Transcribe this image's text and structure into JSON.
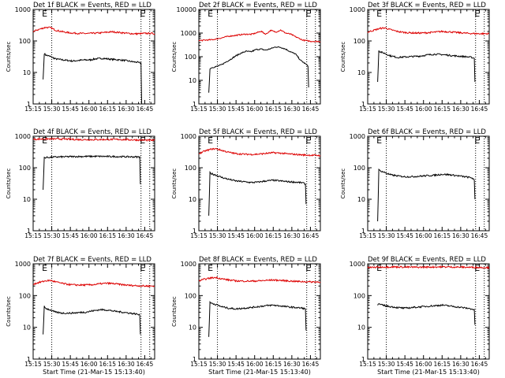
{
  "colors": {
    "events": "#000000",
    "lld": "#dd0000",
    "axis": "#000000"
  },
  "chart_data": [
    {
      "type": "line",
      "title": "Det 1f BLACK = Events, RED = LLD",
      "xlabel": "",
      "ylabel": "Counts/sec",
      "y_scale": "log",
      "ylim": [
        1,
        1000
      ],
      "y_ticks": [
        "1",
        "10",
        "100",
        "1000"
      ],
      "x_ticks": [
        "15:15",
        "15:30",
        "15:45",
        "16:00",
        "16:15",
        "16:30",
        "16:45"
      ],
      "x_minutes": [
        0,
        15,
        30,
        45,
        60,
        75,
        90
      ],
      "xlim_minutes": [
        0,
        98
      ],
      "markers": [
        {
          "label": "E",
          "minute": 9
        },
        {
          "label": "E",
          "minute": 88
        }
      ],
      "dotted_lines_minutes": [
        15,
        87,
        94
      ],
      "series": [
        {
          "color": "black",
          "x": [
            8,
            9,
            10,
            14,
            18,
            24,
            28,
            32,
            36,
            42,
            46,
            50,
            56,
            60,
            64,
            70,
            74,
            80,
            84,
            86,
            87,
            87.5
          ],
          "y": [
            6,
            40,
            36,
            32,
            27,
            25,
            24,
            23,
            24,
            25,
            25,
            27,
            28,
            27,
            26,
            25,
            24,
            22,
            21,
            20,
            20,
            1
          ]
        },
        {
          "color": "red",
          "x": [
            0,
            5,
            10,
            14,
            18,
            24,
            30,
            36,
            42,
            48,
            54,
            60,
            64,
            70,
            76,
            82,
            86,
            92,
            98
          ],
          "y": [
            200,
            235,
            270,
            265,
            220,
            195,
            180,
            175,
            172,
            175,
            180,
            190,
            195,
            185,
            175,
            168,
            170,
            175,
            170
          ]
        }
      ]
    },
    {
      "type": "line",
      "title": "Det 2f BLACK = Events, RED = LLD",
      "xlabel": "",
      "ylabel": "Counts/sec",
      "y_scale": "log",
      "ylim": [
        1,
        10000
      ],
      "y_ticks": [
        "1",
        "10",
        "100",
        "1000",
        "10000"
      ],
      "x_ticks": [
        "15:15",
        "15:30",
        "15:45",
        "16:00",
        "16:15",
        "16:30",
        "16:45"
      ],
      "x_minutes": [
        0,
        15,
        30,
        45,
        60,
        75,
        90
      ],
      "xlim_minutes": [
        0,
        98
      ],
      "markers": [
        {
          "label": "E",
          "minute": 9
        },
        {
          "label": "E",
          "minute": 88
        }
      ],
      "dotted_lines_minutes": [
        15,
        87,
        94
      ],
      "series": [
        {
          "color": "black",
          "x": [
            8,
            9,
            10,
            14,
            18,
            22,
            26,
            30,
            34,
            38,
            42,
            46,
            50,
            54,
            58,
            62,
            66,
            70,
            74,
            78,
            82,
            86,
            88,
            88.5
          ],
          "y": [
            3,
            30,
            34,
            38,
            45,
            60,
            80,
            110,
            140,
            170,
            160,
            200,
            210,
            190,
            220,
            260,
            250,
            210,
            160,
            130,
            70,
            50,
            40,
            5
          ]
        },
        {
          "color": "red",
          "x": [
            0,
            5,
            10,
            14,
            18,
            22,
            26,
            30,
            34,
            38,
            42,
            46,
            50,
            54,
            58,
            62,
            66,
            70,
            74,
            78,
            84,
            90,
            98
          ],
          "y": [
            480,
            500,
            520,
            560,
            620,
            700,
            760,
            800,
            860,
            900,
            880,
            1000,
            1200,
            900,
            1300,
            1100,
            1350,
            1000,
            900,
            700,
            500,
            450,
            440
          ]
        }
      ]
    },
    {
      "type": "line",
      "title": "Det 3f BLACK = Events, RED = LLD",
      "xlabel": "",
      "ylabel": "Counts/sec",
      "y_scale": "log",
      "ylim": [
        1,
        1000
      ],
      "y_ticks": [
        "1",
        "10",
        "100",
        "1000"
      ],
      "x_ticks": [
        "15:15",
        "15:30",
        "15:45",
        "16:00",
        "16:15",
        "16:30",
        "16:45"
      ],
      "x_minutes": [
        0,
        15,
        30,
        45,
        60,
        75,
        90
      ],
      "xlim_minutes": [
        0,
        98
      ],
      "markers": [
        {
          "label": "E",
          "minute": 9
        },
        {
          "label": "E",
          "minute": 88
        }
      ],
      "dotted_lines_minutes": [
        15,
        87,
        94
      ],
      "series": [
        {
          "color": "black",
          "x": [
            8,
            9,
            10,
            14,
            18,
            24,
            30,
            36,
            42,
            48,
            54,
            60,
            66,
            72,
            78,
            84,
            86,
            86.5
          ],
          "y": [
            5,
            50,
            45,
            40,
            34,
            30,
            31,
            32,
            33,
            36,
            38,
            37,
            35,
            33,
            32,
            30,
            28,
            5
          ]
        },
        {
          "color": "red",
          "x": [
            0,
            5,
            10,
            14,
            18,
            24,
            30,
            36,
            42,
            48,
            54,
            60,
            66,
            72,
            78,
            84,
            90,
            98
          ],
          "y": [
            190,
            220,
            250,
            260,
            230,
            200,
            185,
            180,
            178,
            182,
            190,
            200,
            195,
            185,
            178,
            172,
            170,
            170
          ]
        }
      ]
    },
    {
      "type": "line",
      "title": "Det 4f BLACK = Events, RED = LLD",
      "xlabel": "",
      "ylabel": "Counts/sec",
      "y_scale": "log",
      "ylim": [
        1,
        1000
      ],
      "y_ticks": [
        "1",
        "10",
        "100",
        "1000"
      ],
      "x_ticks": [
        "15:15",
        "15:30",
        "15:45",
        "16:00",
        "16:15",
        "16:30",
        "16:45"
      ],
      "x_minutes": [
        0,
        15,
        30,
        45,
        60,
        75,
        90
      ],
      "xlim_minutes": [
        0,
        98
      ],
      "markers": [
        {
          "label": "E",
          "minute": 9
        },
        {
          "label": "E",
          "minute": 88
        }
      ],
      "dotted_lines_minutes": [
        15,
        87,
        94
      ],
      "series": [
        {
          "color": "black",
          "x": [
            8,
            9,
            14,
            20,
            30,
            40,
            50,
            60,
            70,
            80,
            86,
            86.5
          ],
          "y": [
            20,
            210,
            215,
            220,
            225,
            228,
            230,
            228,
            225,
            222,
            220,
            30
          ]
        },
        {
          "color": "red",
          "x": [
            0,
            10,
            20,
            30,
            40,
            50,
            60,
            70,
            80,
            90,
            98
          ],
          "y": [
            800,
            820,
            820,
            800,
            780,
            780,
            790,
            790,
            770,
            750,
            740
          ]
        }
      ]
    },
    {
      "type": "line",
      "title": "Det 5f BLACK = Events, RED = LLD",
      "xlabel": "",
      "ylabel": "Counts/sec",
      "y_scale": "log",
      "ylim": [
        1,
        1000
      ],
      "y_ticks": [
        "1",
        "10",
        "100",
        "1000"
      ],
      "x_ticks": [
        "15:15",
        "15:30",
        "15:45",
        "16:00",
        "16:15",
        "16:30",
        "16:45"
      ],
      "x_minutes": [
        0,
        15,
        30,
        45,
        60,
        75,
        90
      ],
      "xlim_minutes": [
        0,
        98
      ],
      "markers": [
        {
          "label": "E",
          "minute": 9
        },
        {
          "label": "E",
          "minute": 88
        }
      ],
      "dotted_lines_minutes": [
        15,
        87,
        94
      ],
      "series": [
        {
          "color": "black",
          "x": [
            8,
            9,
            10,
            14,
            18,
            24,
            30,
            36,
            42,
            48,
            54,
            60,
            66,
            72,
            78,
            84,
            86,
            86.5
          ],
          "y": [
            3,
            70,
            65,
            58,
            50,
            43,
            38,
            36,
            34,
            35,
            38,
            40,
            38,
            36,
            35,
            33,
            30,
            7
          ]
        },
        {
          "color": "red",
          "x": [
            0,
            5,
            10,
            14,
            18,
            24,
            30,
            36,
            42,
            48,
            54,
            60,
            66,
            72,
            78,
            84,
            90,
            98
          ],
          "y": [
            280,
            340,
            390,
            400,
            360,
            310,
            280,
            270,
            265,
            270,
            285,
            300,
            290,
            275,
            265,
            255,
            250,
            245
          ]
        }
      ]
    },
    {
      "type": "line",
      "title": "Det 6f BLACK = Events, RED = LLD",
      "xlabel": "",
      "ylabel": "Counts/sec",
      "y_scale": "log",
      "ylim": [
        1,
        1000
      ],
      "y_ticks": [
        "1",
        "10",
        "100",
        "1000"
      ],
      "x_ticks": [
        "15:15",
        "15:30",
        "15:45",
        "16:00",
        "16:15",
        "16:30",
        "16:45"
      ],
      "x_minutes": [
        0,
        15,
        30,
        45,
        60,
        75,
        90
      ],
      "xlim_minutes": [
        0,
        98
      ],
      "markers": [
        {
          "label": "E",
          "minute": 9
        },
        {
          "label": "E",
          "minute": 88
        }
      ],
      "dotted_lines_minutes": [
        15,
        87,
        94
      ],
      "series": [
        {
          "color": "black",
          "x": [
            8,
            9,
            10,
            14,
            18,
            24,
            30,
            36,
            42,
            48,
            54,
            60,
            66,
            72,
            78,
            84,
            86,
            86.5
          ],
          "y": [
            2,
            85,
            80,
            70,
            60,
            55,
            52,
            52,
            54,
            56,
            58,
            62,
            60,
            56,
            52,
            48,
            40,
            10
          ]
        }
      ]
    },
    {
      "type": "line",
      "title": "Det 7f BLACK = Events, RED = LLD",
      "xlabel": "Start Time (21-Mar-15 15:13:40)",
      "ylabel": "Counts/sec",
      "y_scale": "log",
      "ylim": [
        1,
        1000
      ],
      "y_ticks": [
        "1",
        "10",
        "100",
        "1000"
      ],
      "x_ticks": [
        "15:15",
        "15:30",
        "15:45",
        "16:00",
        "16:15",
        "16:30",
        "16:45"
      ],
      "x_minutes": [
        0,
        15,
        30,
        45,
        60,
        75,
        90
      ],
      "xlim_minutes": [
        0,
        98
      ],
      "markers": [
        {
          "label": "E",
          "minute": 9
        },
        {
          "label": "E",
          "minute": 88
        }
      ],
      "dotted_lines_minutes": [
        15,
        87,
        94
      ],
      "series": [
        {
          "color": "black",
          "x": [
            8,
            9,
            10,
            14,
            18,
            24,
            30,
            36,
            42,
            48,
            54,
            60,
            66,
            72,
            78,
            84,
            86,
            86.5
          ],
          "y": [
            6,
            45,
            40,
            35,
            30,
            28,
            28,
            29,
            30,
            33,
            36,
            35,
            32,
            30,
            28,
            26,
            24,
            6
          ]
        },
        {
          "color": "red",
          "x": [
            0,
            5,
            10,
            14,
            18,
            24,
            30,
            36,
            42,
            48,
            54,
            60,
            66,
            72,
            78,
            84,
            90,
            98
          ],
          "y": [
            230,
            260,
            290,
            300,
            270,
            240,
            220,
            215,
            215,
            220,
            235,
            245,
            235,
            220,
            210,
            205,
            200,
            200
          ]
        }
      ]
    },
    {
      "type": "line",
      "title": "Det 8f BLACK = Events, RED = LLD",
      "xlabel": "Start Time (21-Mar-15 15:13:40)",
      "ylabel": "Counts/sec",
      "y_scale": "log",
      "ylim": [
        1,
        1000
      ],
      "y_ticks": [
        "1",
        "10",
        "100",
        "1000"
      ],
      "x_ticks": [
        "15:15",
        "15:30",
        "15:45",
        "16:00",
        "16:15",
        "16:30",
        "16:45"
      ],
      "x_minutes": [
        0,
        15,
        30,
        45,
        60,
        75,
        90
      ],
      "xlim_minutes": [
        0,
        98
      ],
      "markers": [
        {
          "label": "E",
          "minute": 9
        },
        {
          "label": "E",
          "minute": 88
        }
      ],
      "dotted_lines_minutes": [
        15,
        87,
        94
      ],
      "series": [
        {
          "color": "black",
          "x": [
            8,
            9,
            10,
            14,
            18,
            24,
            30,
            36,
            42,
            48,
            54,
            60,
            66,
            72,
            78,
            84,
            86,
            86.5
          ],
          "y": [
            5,
            60,
            58,
            52,
            45,
            40,
            38,
            40,
            42,
            45,
            48,
            50,
            47,
            44,
            42,
            40,
            38,
            8
          ]
        },
        {
          "color": "red",
          "x": [
            0,
            5,
            10,
            14,
            18,
            24,
            30,
            36,
            42,
            48,
            54,
            60,
            66,
            72,
            78,
            84,
            90,
            98
          ],
          "y": [
            290,
            330,
            360,
            370,
            340,
            310,
            290,
            285,
            285,
            290,
            300,
            310,
            300,
            290,
            280,
            275,
            270,
            270
          ]
        }
      ]
    },
    {
      "type": "line",
      "title": "Det 9f BLACK = Events, RED = LLD",
      "xlabel": "Start Time (21-Mar-15 15:13:40)",
      "ylabel": "",
      "y_scale": "log",
      "ylim": [
        1,
        1000
      ],
      "y_ticks": [
        "1",
        "10",
        "100",
        "1000"
      ],
      "x_ticks": [
        "15:15",
        "15:30",
        "15:45",
        "16:00",
        "16:15",
        "16:30",
        "16:45"
      ],
      "x_minutes": [
        0,
        15,
        30,
        45,
        60,
        75,
        90
      ],
      "xlim_minutes": [
        0,
        98
      ],
      "markers": [
        {
          "label": "E",
          "minute": 9
        },
        {
          "label": "E",
          "minute": 88
        }
      ],
      "dotted_lines_minutes": [
        15,
        87,
        94
      ],
      "series": [
        {
          "color": "black",
          "x": [
            8,
            9,
            10,
            14,
            18,
            24,
            30,
            36,
            42,
            48,
            54,
            60,
            66,
            72,
            78,
            84,
            86,
            86.5
          ],
          "y": [
            50,
            55,
            52,
            48,
            45,
            42,
            40,
            42,
            44,
            46,
            48,
            50,
            47,
            44,
            41,
            38,
            35,
            12
          ]
        },
        {
          "color": "red",
          "x": [
            0,
            10,
            20,
            30,
            40,
            50,
            60,
            70,
            80,
            90,
            98
          ],
          "y": [
            760,
            790,
            800,
            790,
            780,
            790,
            800,
            790,
            780,
            770,
            760
          ]
        }
      ]
    }
  ]
}
